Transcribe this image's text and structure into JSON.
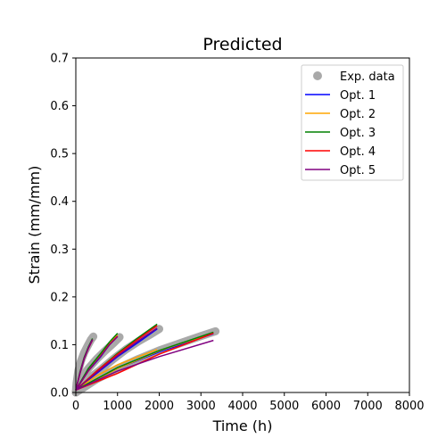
{
  "chart_data": {
    "type": "line",
    "title": "Predicted",
    "xlabel": "Time (h)",
    "ylabel": "Strain (mm/mm)",
    "xlim": [
      0,
      8000
    ],
    "ylim": [
      0,
      0.7
    ],
    "xticks": [
      0,
      1000,
      2000,
      3000,
      4000,
      5000,
      6000,
      7000,
      8000
    ],
    "yticks": [
      0.0,
      0.1,
      0.2,
      0.3,
      0.4,
      0.5,
      0.6,
      0.7
    ],
    "grid": false,
    "legend": "top-right",
    "exp_data": {
      "name": "Exp. data",
      "color": "#a9a9a9",
      "curves": [
        [
          [
            0,
            0.0
          ],
          [
            20,
            0.02
          ],
          [
            60,
            0.045
          ],
          [
            120,
            0.065
          ],
          [
            200,
            0.083
          ],
          [
            280,
            0.097
          ],
          [
            360,
            0.11
          ],
          [
            420,
            0.117
          ]
        ],
        [
          [
            0,
            0.0
          ],
          [
            50,
            0.015
          ],
          [
            150,
            0.032
          ],
          [
            300,
            0.05
          ],
          [
            500,
            0.07
          ],
          [
            700,
            0.087
          ],
          [
            900,
            0.103
          ],
          [
            1050,
            0.116
          ]
        ],
        [
          [
            0,
            0.0
          ],
          [
            100,
            0.012
          ],
          [
            300,
            0.028
          ],
          [
            600,
            0.048
          ],
          [
            900,
            0.07
          ],
          [
            1200,
            0.09
          ],
          [
            1500,
            0.107
          ],
          [
            1800,
            0.122
          ],
          [
            2000,
            0.133
          ]
        ],
        [
          [
            0,
            0.0
          ],
          [
            150,
            0.008
          ],
          [
            500,
            0.028
          ],
          [
            1000,
            0.05
          ],
          [
            1500,
            0.07
          ],
          [
            2000,
            0.088
          ],
          [
            2500,
            0.103
          ],
          [
            3000,
            0.118
          ],
          [
            3350,
            0.128
          ]
        ]
      ]
    },
    "series": [
      {
        "name": "Opt. 1",
        "color": "#0000ff",
        "curves": [
          [
            [
              0,
              0.005
            ],
            [
              100,
              0.04
            ],
            [
              200,
              0.07
            ],
            [
              300,
              0.092
            ],
            [
              400,
              0.11
            ]
          ],
          [
            [
              0,
              0.005
            ],
            [
              300,
              0.045
            ],
            [
              600,
              0.075
            ],
            [
              800,
              0.1
            ],
            [
              1000,
              0.118
            ]
          ],
          [
            [
              0,
              0.005
            ],
            [
              500,
              0.04
            ],
            [
              1000,
              0.075
            ],
            [
              1500,
              0.105
            ],
            [
              1950,
              0.133
            ]
          ],
          [
            [
              0,
              0.005
            ],
            [
              1000,
              0.05
            ],
            [
              2000,
              0.085
            ],
            [
              3300,
              0.123
            ]
          ]
        ]
      },
      {
        "name": "Opt. 2",
        "color": "#ffa500",
        "curves": [
          [
            [
              0,
              0.005
            ],
            [
              100,
              0.042
            ],
            [
              200,
              0.072
            ],
            [
              300,
              0.094
            ],
            [
              400,
              0.112
            ]
          ],
          [
            [
              0,
              0.005
            ],
            [
              300,
              0.047
            ],
            [
              600,
              0.078
            ],
            [
              800,
              0.102
            ],
            [
              1000,
              0.12
            ]
          ],
          [
            [
              0,
              0.005
            ],
            [
              500,
              0.035
            ],
            [
              1000,
              0.058
            ],
            [
              1500,
              0.075
            ],
            [
              1950,
              0.09
            ]
          ],
          [
            [
              0,
              0.005
            ],
            [
              1000,
              0.05
            ],
            [
              2000,
              0.087
            ],
            [
              3300,
              0.125
            ]
          ]
        ]
      },
      {
        "name": "Opt. 3",
        "color": "#008000",
        "curves": [
          [
            [
              0,
              0.005
            ],
            [
              100,
              0.043
            ],
            [
              200,
              0.073
            ],
            [
              300,
              0.095
            ],
            [
              400,
              0.113
            ]
          ],
          [
            [
              0,
              0.005
            ],
            [
              300,
              0.05
            ],
            [
              600,
              0.082
            ],
            [
              800,
              0.105
            ],
            [
              1000,
              0.124
            ]
          ],
          [
            [
              0,
              0.005
            ],
            [
              500,
              0.045
            ],
            [
              1000,
              0.082
            ],
            [
              1500,
              0.115
            ],
            [
              1950,
              0.143
            ]
          ],
          [
            [
              0,
              0.005
            ],
            [
              1000,
              0.052
            ],
            [
              2000,
              0.088
            ],
            [
              3300,
              0.126
            ]
          ]
        ]
      },
      {
        "name": "Opt. 4",
        "color": "#ff0000",
        "curves": [
          [
            [
              0,
              0.005
            ],
            [
              100,
              0.04
            ],
            [
              200,
              0.07
            ],
            [
              300,
              0.092
            ],
            [
              400,
              0.11
            ]
          ],
          [
            [
              0,
              0.005
            ],
            [
              300,
              0.045
            ],
            [
              600,
              0.077
            ],
            [
              800,
              0.1
            ],
            [
              1000,
              0.118
            ]
          ],
          [
            [
              0,
              0.005
            ],
            [
              500,
              0.045
            ],
            [
              1000,
              0.08
            ],
            [
              1500,
              0.112
            ],
            [
              1950,
              0.14
            ]
          ],
          [
            [
              0,
              0.005
            ],
            [
              1000,
              0.04
            ],
            [
              2000,
              0.08
            ],
            [
              3300,
              0.124
            ]
          ]
        ]
      },
      {
        "name": "Opt. 5",
        "color": "#800080",
        "curves": [
          [
            [
              0,
              0.005
            ],
            [
              100,
              0.041
            ],
            [
              200,
              0.071
            ],
            [
              300,
              0.093
            ],
            [
              400,
              0.111
            ]
          ],
          [
            [
              0,
              0.005
            ],
            [
              300,
              0.046
            ],
            [
              600,
              0.076
            ],
            [
              800,
              0.099
            ],
            [
              1000,
              0.117
            ]
          ],
          [
            [
              0,
              0.005
            ],
            [
              500,
              0.042
            ],
            [
              1000,
              0.077
            ],
            [
              1500,
              0.108
            ],
            [
              1950,
              0.135
            ]
          ],
          [
            [
              0,
              0.005
            ],
            [
              1000,
              0.045
            ],
            [
              2000,
              0.075
            ],
            [
              3300,
              0.109
            ]
          ]
        ]
      }
    ]
  }
}
